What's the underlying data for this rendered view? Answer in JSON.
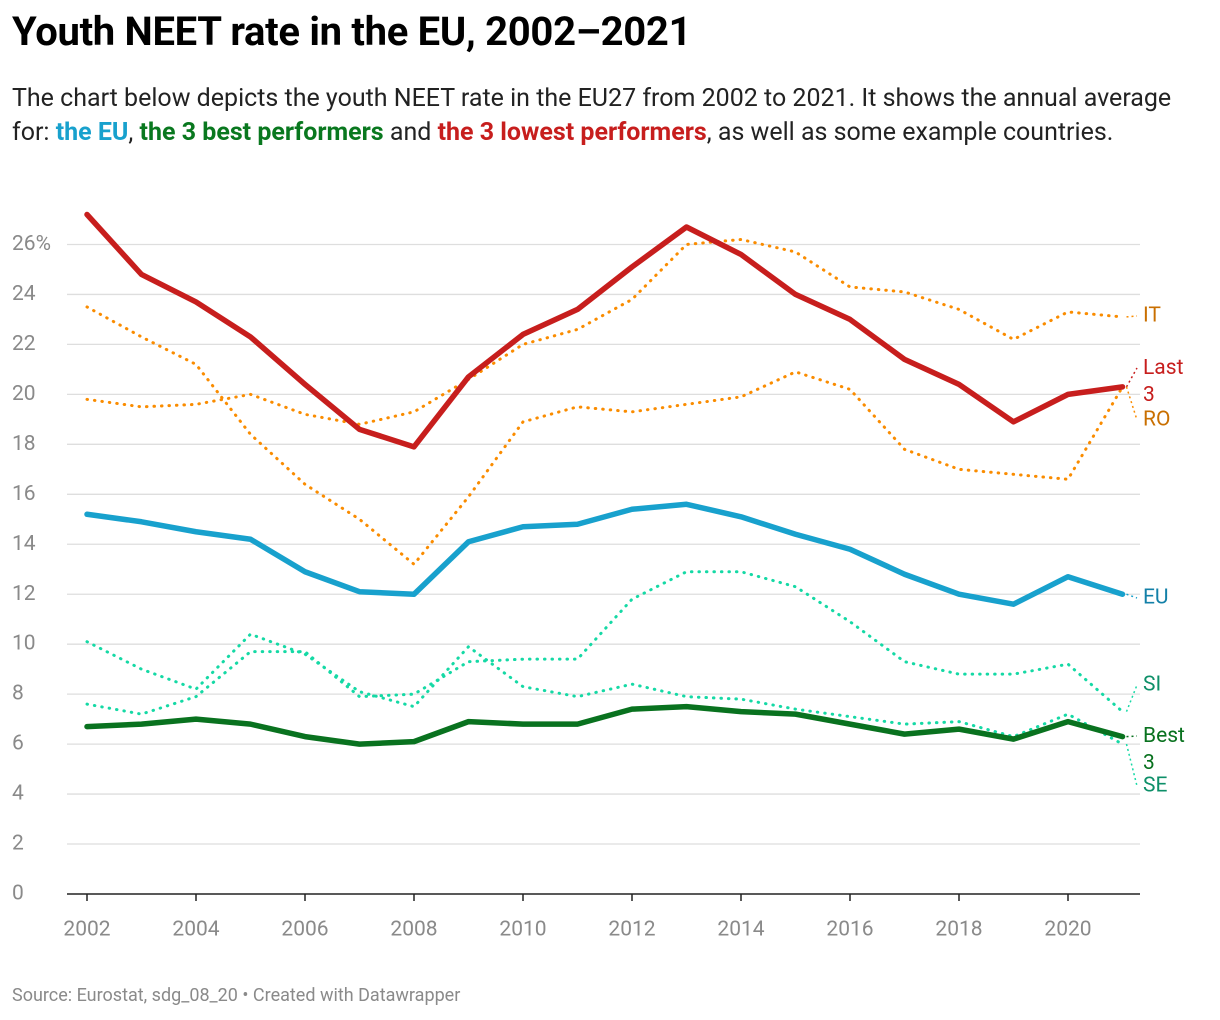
{
  "chart_data": {
    "type": "line",
    "title": "Youth NEET rate in the EU, 2002–2021",
    "subtitle": [
      {
        "text": "The chart below depicts the youth NEET rate in the EU27 from 2002 to 2021. It shows the annual average for: "
      },
      {
        "text": "the EU",
        "color": "#18a1cd"
      },
      {
        "text": ", "
      },
      {
        "text": "the 3 best performers",
        "color": "#09781f"
      },
      {
        "text": " and "
      },
      {
        "text": "the 3 lowest performers",
        "color": "#c71e1d"
      },
      {
        "text": ", as well as some example countries."
      }
    ],
    "source": "Source: Eurostat, sdg_08_20 • Created with Datawrapper",
    "x": [
      2002,
      2003,
      2004,
      2005,
      2006,
      2007,
      2008,
      2009,
      2010,
      2011,
      2012,
      2013,
      2014,
      2015,
      2016,
      2017,
      2018,
      2019,
      2020,
      2021
    ],
    "xlim": [
      2002,
      2021
    ],
    "xticks": [
      2002,
      2004,
      2006,
      2008,
      2010,
      2012,
      2014,
      2016,
      2018,
      2020
    ],
    "ylim": [
      0,
      27.5
    ],
    "yticks": [
      0,
      2,
      4,
      6,
      8,
      10,
      12,
      14,
      16,
      18,
      20,
      22,
      24,
      {
        "value": 26,
        "label": "26%"
      }
    ],
    "grid": true,
    "series": [
      {
        "name": "IT",
        "color": "#fa8c00",
        "label_color": "#c96f00",
        "style": "dotted",
        "values": [
          19.8,
          19.5,
          19.6,
          20.0,
          19.2,
          18.8,
          19.3,
          20.6,
          22.0,
          22.6,
          23.8,
          26.0,
          26.2,
          25.7,
          24.3,
          24.1,
          23.4,
          22.2,
          23.3,
          23.1
        ]
      },
      {
        "name": "Last 3",
        "color": "#c71e1d",
        "label_color": "#c71e1d",
        "style": "solid",
        "values": [
          27.2,
          24.8,
          23.7,
          22.3,
          20.4,
          18.6,
          17.9,
          20.7,
          22.4,
          23.4,
          25.1,
          26.7,
          25.6,
          24.0,
          23.0,
          21.4,
          20.4,
          18.9,
          20.0,
          20.3
        ]
      },
      {
        "name": "RO",
        "color": "#fa8c00",
        "label_color": "#c96f00",
        "style": "dotted",
        "values": [
          23.5,
          22.3,
          21.2,
          18.4,
          16.4,
          15.0,
          13.2,
          15.9,
          18.9,
          19.5,
          19.3,
          19.6,
          19.9,
          20.9,
          20.2,
          17.8,
          17.0,
          16.8,
          16.6,
          20.3
        ]
      },
      {
        "name": "EU",
        "color": "#18a1cd",
        "label_color": "#1380a8",
        "style": "solid",
        "values": [
          15.2,
          14.9,
          14.5,
          14.2,
          12.9,
          12.1,
          12.0,
          14.1,
          14.7,
          14.8,
          15.4,
          15.6,
          15.1,
          14.4,
          13.8,
          12.8,
          12.0,
          11.6,
          12.7,
          12.0
        ]
      },
      {
        "name": "SI",
        "color": "#15d9a5",
        "label_color": "#0d8f68",
        "style": "dotted",
        "values": [
          7.6,
          7.2,
          7.9,
          9.7,
          9.7,
          7.9,
          8.0,
          9.3,
          9.4,
          9.4,
          11.8,
          12.9,
          12.9,
          12.3,
          10.9,
          9.3,
          8.8,
          8.8,
          9.2,
          7.3
        ]
      },
      {
        "name": "Best 3",
        "color": "#09721f",
        "label_color": "#09721f",
        "style": "solid",
        "values": [
          6.7,
          6.8,
          7.0,
          6.8,
          6.3,
          6.0,
          6.1,
          6.9,
          6.8,
          6.8,
          7.4,
          7.5,
          7.3,
          7.2,
          6.8,
          6.4,
          6.6,
          6.2,
          6.9,
          6.3
        ]
      },
      {
        "name": "SE",
        "color": "#15d9a5",
        "label_color": "#0d8f68",
        "style": "dotted",
        "values": [
          10.1,
          9.0,
          8.2,
          10.4,
          9.6,
          8.1,
          7.5,
          9.9,
          8.3,
          7.9,
          8.4,
          7.9,
          7.8,
          7.4,
          7.1,
          6.8,
          6.9,
          6.3,
          7.2,
          6.0
        ]
      }
    ]
  }
}
